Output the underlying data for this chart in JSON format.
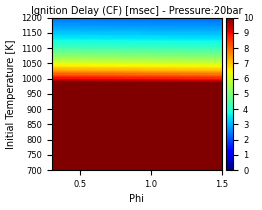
{
  "title": "Ignition Delay (CF) [msec] - Pressure:20bar",
  "xlabel": "Phi",
  "ylabel": "Initial Temperature [K]",
  "phi_min": 0.3,
  "phi_max": 1.5,
  "temp_min": 700,
  "temp_max": 1200,
  "cmap": "jet",
  "clim_min": 0,
  "clim_max": 10,
  "title_fontsize": 7,
  "label_fontsize": 7,
  "tick_fontsize": 6,
  "colorbar_fontsize": 6,
  "figsize": [
    2.62,
    2.1
  ],
  "dpi": 100
}
